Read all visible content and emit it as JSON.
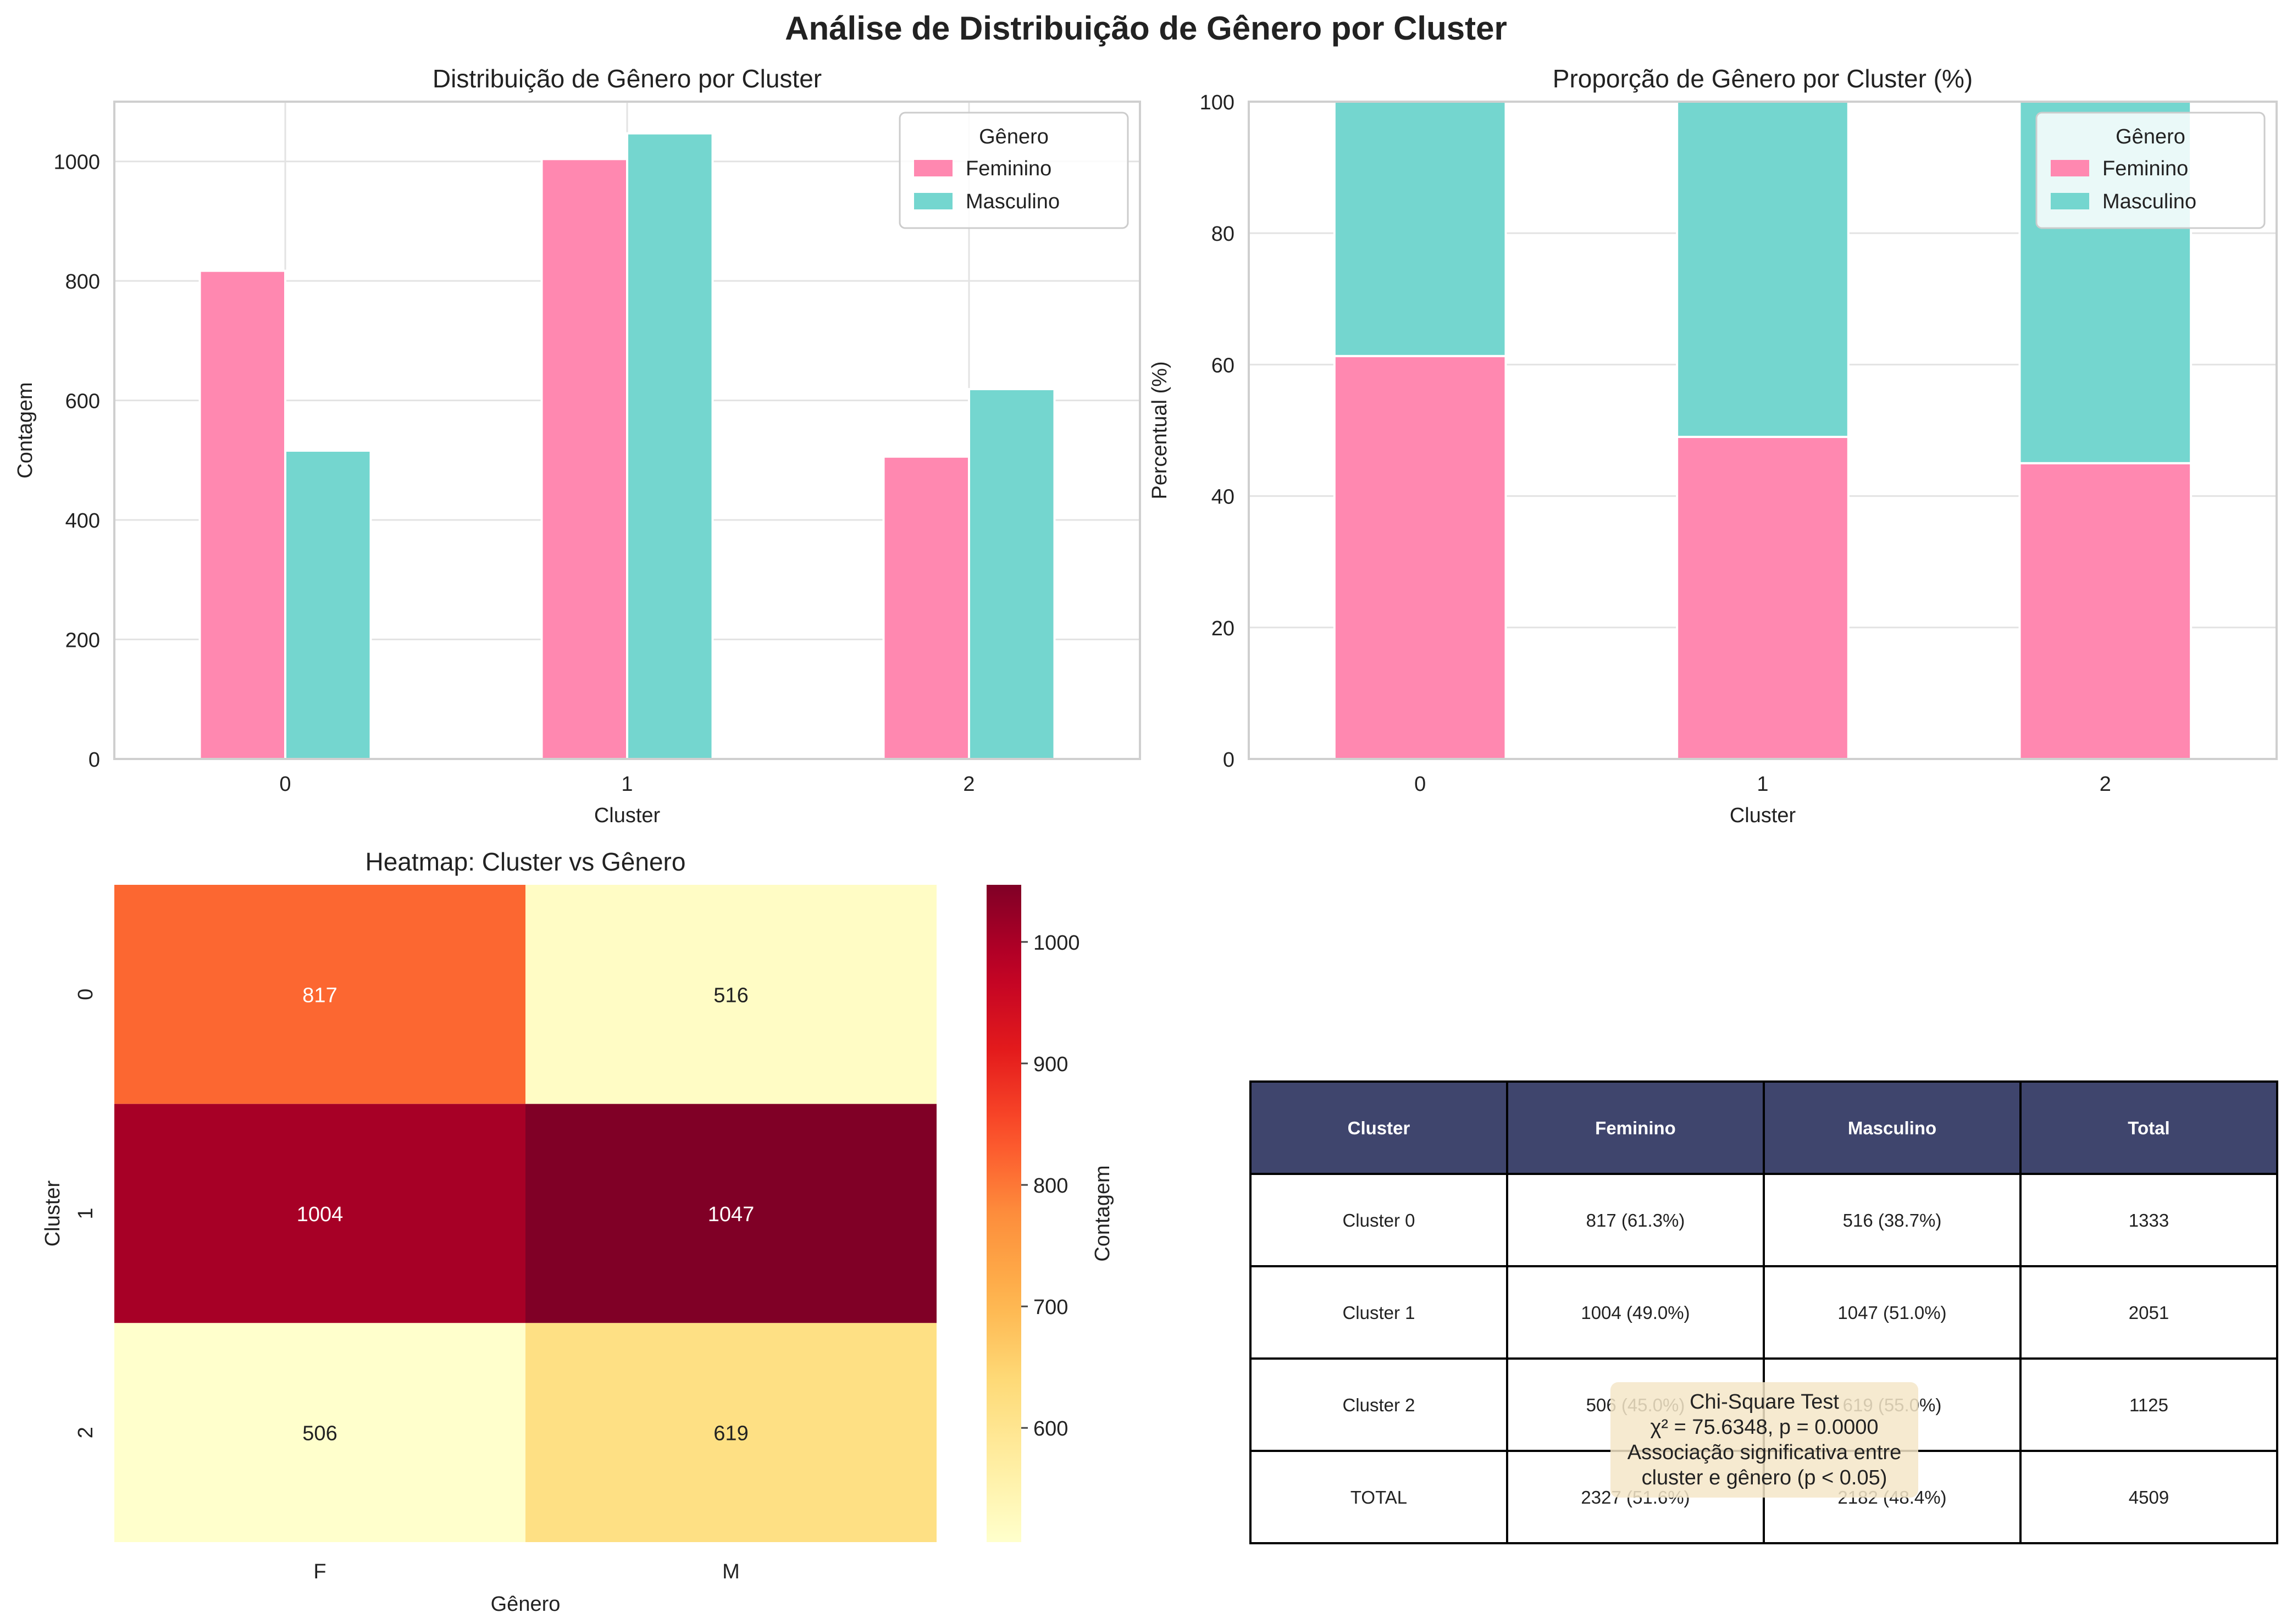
{
  "figure": {
    "title": "Análise de Distribuição de Gênero por Cluster"
  },
  "colors": {
    "feminino": "#ff88b0",
    "masculino": "#74d6cf",
    "table_header": "#3f456d",
    "grid": "#e3e3e3",
    "axis_edge": "#cfcfcf",
    "annotation_box": "#f5e6c8"
  },
  "chart_data": [
    {
      "id": "counts",
      "type": "bar",
      "title": "Distribuição de Gênero por Cluster",
      "xlabel": "Cluster",
      "ylabel": "Contagem",
      "categories": [
        "0",
        "1",
        "2"
      ],
      "ylim": [
        0,
        1100
      ],
      "yticks": [
        0,
        200,
        400,
        600,
        800,
        1000
      ],
      "grid": true,
      "legend": {
        "title": "Gênero",
        "placement": "top-right"
      },
      "series": [
        {
          "name": "Feminino",
          "values": [
            817,
            1004,
            506
          ]
        },
        {
          "name": "Masculino",
          "values": [
            516,
            1047,
            619
          ]
        }
      ]
    },
    {
      "id": "percent",
      "type": "bar",
      "stacked": true,
      "title": "Proporção de Gênero por Cluster (%)",
      "xlabel": "Cluster",
      "ylabel": "Percentual (%)",
      "categories": [
        "0",
        "1",
        "2"
      ],
      "ylim": [
        0,
        100
      ],
      "yticks": [
        0,
        20,
        40,
        60,
        80,
        100
      ],
      "grid": true,
      "legend": {
        "title": "Gênero",
        "placement": "top-right"
      },
      "series": [
        {
          "name": "Feminino",
          "values": [
            61.3,
            49.0,
            45.0
          ]
        },
        {
          "name": "Masculino",
          "values": [
            38.7,
            51.0,
            55.0
          ]
        }
      ]
    },
    {
      "id": "heatmap",
      "type": "heatmap",
      "title": "Heatmap: Cluster vs Gênero",
      "xlabel": "Gênero",
      "ylabel": "Cluster",
      "x_categories": [
        "F",
        "M"
      ],
      "y_categories": [
        "0",
        "1",
        "2"
      ],
      "values": [
        [
          817,
          516
        ],
        [
          1004,
          1047
        ],
        [
          506,
          619
        ]
      ],
      "colorbar": {
        "label": "Contagem",
        "ticks": [
          600,
          700,
          800,
          900,
          1000
        ],
        "range": [
          506,
          1047
        ],
        "colormap": "YlOrRd"
      }
    },
    {
      "id": "summary",
      "type": "table",
      "columns": [
        "Cluster",
        "Feminino",
        "Masculino",
        "Total"
      ],
      "rows": [
        [
          "Cluster 0",
          "817 (61.3%)",
          "516 (38.7%)",
          "1333"
        ],
        [
          "Cluster 1",
          "1004 (49.0%)",
          "1047 (51.0%)",
          "2051"
        ],
        [
          "Cluster 2",
          "506 (45.0%)",
          "619 (55.0%)",
          "1125"
        ],
        [
          "TOTAL",
          "2327 (51.6%)",
          "2182 (48.4%)",
          "4509"
        ]
      ],
      "annotation": [
        "Chi-Square Test",
        "χ² = 75.6348, p = 0.0000",
        "Associação significativa entre",
        "cluster e gênero (p < 0.05)"
      ]
    }
  ]
}
